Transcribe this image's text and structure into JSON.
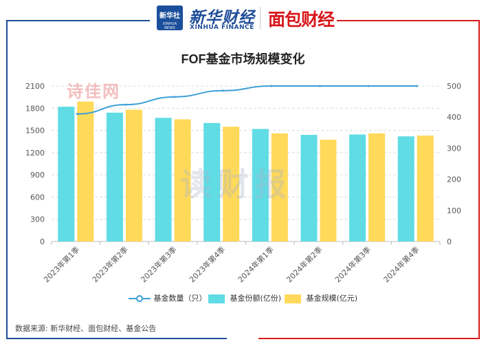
{
  "header": {
    "logo_badge_cn": "新华社",
    "logo_badge_en": "XINHUA NEWS",
    "brand_cn": "新华财经",
    "brand_en": "XINHUA FINANCE",
    "brand_partner": "面包财经"
  },
  "watermarks": {
    "top": "诗佳网",
    "center": "读财报"
  },
  "source": "数据来源: 新华财经、面包财经、基金公告",
  "colors": {
    "share_bar": "#5fdce4",
    "size_bar": "#ffd95a",
    "count_line": "#3b9fd6",
    "frame_left": "#1e4c98",
    "frame_right": "#d8171b"
  },
  "chart_data": {
    "type": "bar",
    "title": "FOF基金市场规模变化",
    "categories": [
      "2023年第1季",
      "2023年第2季",
      "2023年第3季",
      "2023年第4季",
      "2024年第1季",
      "2024年第2季",
      "2024年第3季",
      "2024年第4季"
    ],
    "series": [
      {
        "name": "基金数量（只）",
        "type": "line",
        "axis": "right",
        "values": [
          410,
          440,
          465,
          485,
          500,
          500,
          500,
          500
        ]
      },
      {
        "name": "基金份额(亿份)",
        "type": "bar",
        "axis": "left",
        "values": [
          1820,
          1740,
          1670,
          1600,
          1520,
          1440,
          1445,
          1420
        ]
      },
      {
        "name": "基金规模(亿元)",
        "type": "bar",
        "axis": "left",
        "values": [
          1890,
          1780,
          1650,
          1550,
          1460,
          1375,
          1460,
          1430
        ]
      }
    ],
    "y_left": {
      "min": 0,
      "max": 2100,
      "ticks": [
        "0",
        "300",
        "600",
        "900",
        "1200",
        "1500",
        "1800",
        "2100"
      ]
    },
    "y_right": {
      "min": 0,
      "max": 500,
      "ticks": [
        "0",
        "100",
        "200",
        "300",
        "400",
        "500"
      ]
    },
    "grid": "horizontal dashed",
    "legend_position": "bottom"
  }
}
